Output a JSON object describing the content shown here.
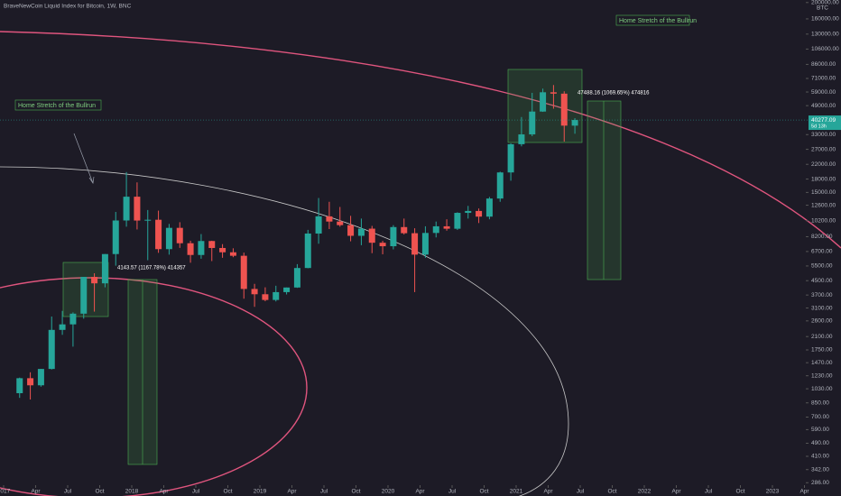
{
  "chart_data": {
    "type": "candlestick",
    "title": "BraveNewCoin Liquid Index for Bitcoin, 1W, BNC",
    "currency": "BTC",
    "log_scale": true,
    "up_color": "#26a69a",
    "down_color": "#ef5350",
    "x": [
      "2017-02",
      "2017-03",
      "2017-04",
      "2017-05",
      "2017-06",
      "2017-07",
      "2017-08",
      "2017-09",
      "2017-10",
      "2017-11",
      "2017-12",
      "2018-01",
      "2018-02",
      "2018-03",
      "2018-04",
      "2018-05",
      "2018-06",
      "2018-07",
      "2018-08",
      "2018-09",
      "2018-10",
      "2018-11",
      "2018-12",
      "2019-01",
      "2019-02",
      "2019-03",
      "2019-04",
      "2019-05",
      "2019-06",
      "2019-07",
      "2019-08",
      "2019-09",
      "2019-10",
      "2019-11",
      "2019-12",
      "2020-01",
      "2020-02",
      "2020-03",
      "2020-04",
      "2020-05",
      "2020-06",
      "2020-07",
      "2020-08",
      "2020-09",
      "2020-10",
      "2020-11",
      "2020-12",
      "2021-01",
      "2021-02",
      "2021-03",
      "2021-04",
      "2021-05",
      "2021-06"
    ],
    "open": [
      970,
      1190,
      1080,
      1350,
      2300,
      2480,
      2870,
      4740,
      4340,
      6470,
      10230,
      14150,
      10220,
      10330,
      6920,
      9250,
      7500,
      6390,
      7730,
      7030,
      6630,
      6320,
      4020,
      3740,
      3460,
      3850,
      4100,
      5350,
      8560,
      10820,
      10080,
      9600,
      8300,
      9150,
      7550,
      7200,
      9350,
      8600,
      6420,
      8630,
      9450,
      9140,
      11350,
      11650,
      10780,
      13800,
      19700,
      28950,
      33100,
      45200,
      58800,
      57700,
      37300
    ],
    "high": [
      1200,
      1290,
      1350,
      2760,
      2980,
      2920,
      4740,
      4980,
      6470,
      11500,
      19800,
      17200,
      11800,
      11700,
      9760,
      9990,
      7760,
      8500,
      7760,
      7410,
      7000,
      6600,
      4310,
      4110,
      4200,
      4100,
      5640,
      9000,
      13900,
      13200,
      12300,
      10900,
      10500,
      9500,
      7750,
      9600,
      10500,
      9200,
      9450,
      10080,
      10400,
      11440,
      12480,
      12050,
      14100,
      19900,
      29300,
      41950,
      58350,
      61800,
      64900,
      59600,
      41300
    ],
    "low": [
      910,
      890,
      1060,
      1340,
      2150,
      1830,
      2680,
      2950,
      4110,
      5520,
      9400,
      9050,
      5950,
      6580,
      6420,
      7040,
      5750,
      6070,
      5880,
      6150,
      6200,
      3520,
      3150,
      3400,
      3390,
      3730,
      4080,
      5330,
      7450,
      9100,
      9400,
      7700,
      7300,
      6550,
      6450,
      6900,
      8450,
      3850,
      6150,
      8120,
      8900,
      8990,
      10500,
      9880,
      10400,
      13200,
      17600,
      28130,
      32300,
      45000,
      47000,
      30000,
      33400
    ],
    "close": [
      1190,
      1080,
      1350,
      2300,
      2480,
      2870,
      4740,
      4340,
      6470,
      10230,
      14150,
      10220,
      10330,
      6920,
      9250,
      7500,
      6390,
      7730,
      7030,
      6630,
      6320,
      4020,
      3740,
      3460,
      3850,
      4100,
      5350,
      8560,
      10820,
      10080,
      9600,
      8300,
      9150,
      7550,
      7200,
      9350,
      8600,
      6420,
      8630,
      9450,
      9140,
      11350,
      11650,
      10780,
      13800,
      19700,
      28950,
      33100,
      45200,
      58800,
      57700,
      37300,
      40277.09
    ],
    "last_price": 40277.09,
    "countdown": "5d 13h",
    "ylim": [
      280,
      207000
    ],
    "yticks": [
      {
        "value": 200000,
        "label": "200000.00"
      },
      {
        "value": 160000,
        "label": "160000.00"
      },
      {
        "value": 130000,
        "label": "130000.00"
      },
      {
        "value": 106000,
        "label": "106000.00"
      },
      {
        "value": 86000,
        "label": "86000.00"
      },
      {
        "value": 71000,
        "label": "71000.00"
      },
      {
        "value": 59000,
        "label": "59000.00"
      },
      {
        "value": 49000,
        "label": "49000.00"
      },
      {
        "value": 33000,
        "label": "33000.00"
      },
      {
        "value": 27000,
        "label": "27000.00"
      },
      {
        "value": 22000,
        "label": "22000.00"
      },
      {
        "value": 18000,
        "label": "18000.00"
      },
      {
        "value": 15000,
        "label": "15000.00"
      },
      {
        "value": 12600,
        "label": "12600.00"
      },
      {
        "value": 10200,
        "label": "10200.00"
      },
      {
        "value": 8200,
        "label": "8200.00"
      },
      {
        "value": 6700,
        "label": "6700.00"
      },
      {
        "value": 5500,
        "label": "5500.00"
      },
      {
        "value": 4500,
        "label": "4500.00"
      },
      {
        "value": 3700,
        "label": "3700.00"
      },
      {
        "value": 3100,
        "label": "3100.00"
      },
      {
        "value": 2600,
        "label": "2600.00"
      },
      {
        "value": 2100,
        "label": "2100.00"
      },
      {
        "value": 1750,
        "label": "1750.00"
      },
      {
        "value": 1470,
        "label": "1470.00"
      },
      {
        "value": 1230,
        "label": "1230.00"
      },
      {
        "value": 1030,
        "label": "1030.00"
      },
      {
        "value": 850,
        "label": "850.00"
      },
      {
        "value": 700,
        "label": "700.00"
      },
      {
        "value": 590,
        "label": "590.00"
      },
      {
        "value": 490,
        "label": "490.00"
      },
      {
        "value": 410,
        "label": "410.00"
      },
      {
        "value": 342,
        "label": "342.00"
      },
      {
        "value": 286,
        "label": "286.00"
      }
    ],
    "xticks": [
      {
        "value": "2017-01",
        "label": "2017"
      },
      {
        "value": "2017-04",
        "label": "Apr"
      },
      {
        "value": "2017-07",
        "label": "Jul"
      },
      {
        "value": "2017-10",
        "label": "Oct"
      },
      {
        "value": "2018-01",
        "label": "2018"
      },
      {
        "value": "2018-04",
        "label": "Apr"
      },
      {
        "value": "2018-07",
        "label": "Jul"
      },
      {
        "value": "2018-10",
        "label": "Oct"
      },
      {
        "value": "2019-01",
        "label": "2019"
      },
      {
        "value": "2019-04",
        "label": "Apr"
      },
      {
        "value": "2019-07",
        "label": "Jul"
      },
      {
        "value": "2019-10",
        "label": "Oct"
      },
      {
        "value": "2020-01",
        "label": "2020"
      },
      {
        "value": "2020-04",
        "label": "Apr"
      },
      {
        "value": "2020-07",
        "label": "Jul"
      },
      {
        "value": "2020-10",
        "label": "Oct"
      },
      {
        "value": "2021-01",
        "label": "2021"
      },
      {
        "value": "2021-04",
        "label": "Apr"
      },
      {
        "value": "2021-07",
        "label": "Jul"
      },
      {
        "value": "2021-10",
        "label": "Oct"
      },
      {
        "value": "2022-01",
        "label": "2022"
      },
      {
        "value": "2022-04",
        "label": "Apr"
      },
      {
        "value": "2022-07",
        "label": "Jul"
      },
      {
        "value": "2022-10",
        "label": "Oct"
      },
      {
        "value": "2023-01",
        "label": "2023"
      },
      {
        "value": "2023-04",
        "label": "Apr"
      }
    ],
    "annotations": [
      "Home Stretch of the Bullrun",
      "Home Stretch of the Bullrun",
      "4143.57 (1167.78%) 414357",
      "47488.16 (1069.65%) 474816"
    ]
  }
}
